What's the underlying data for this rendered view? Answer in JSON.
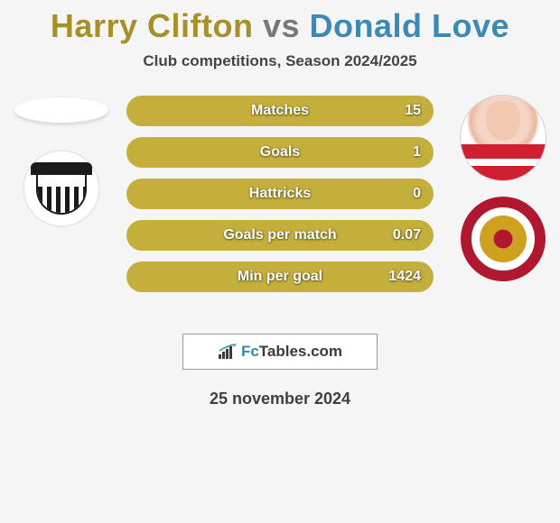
{
  "title": {
    "player1": "Harry Clifton",
    "vs": "vs",
    "player2": "Donald Love",
    "player1_color": "#a89028",
    "vs_color": "#787878",
    "player2_color": "#3a8ab8"
  },
  "subtitle": {
    "text": "Club competitions, Season 2024/2025",
    "color": "#444444"
  },
  "stats": {
    "pill_bg": "#c4ae3c",
    "pill_fill": "#a89028",
    "rows": [
      {
        "label": "Matches",
        "value": "15",
        "fill_pct": 0
      },
      {
        "label": "Goals",
        "value": "1",
        "fill_pct": 0
      },
      {
        "label": "Hattricks",
        "value": "0",
        "fill_pct": 0
      },
      {
        "label": "Goals per match",
        "value": "0.07",
        "fill_pct": 0
      },
      {
        "label": "Min per goal",
        "value": "1424",
        "fill_pct": 0
      }
    ]
  },
  "logo": {
    "fc": "Fc",
    "tables": "Tables.com",
    "border_color": "#9a9a9a",
    "fc_color": "#3688b4",
    "tables_color": "#3a3a3a"
  },
  "date": {
    "text": "25 november 2024",
    "color": "#3f3f3f"
  },
  "badges": {
    "left_name": "grimsby-town-badge",
    "right_name": "accrington-stanley-badge"
  }
}
